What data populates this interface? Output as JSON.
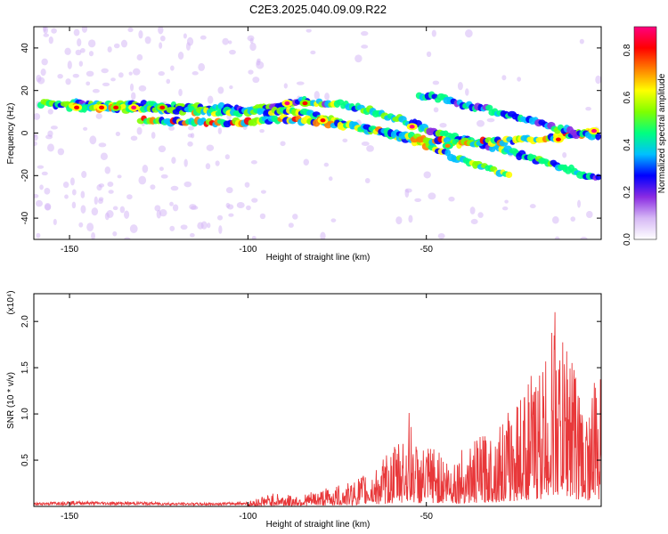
{
  "title": "C2E3.2025.040.09.09.R22",
  "colors": {
    "snr_line": "#e8383a",
    "axis": "#000000",
    "background": "#ffffff"
  },
  "chart_data": [
    {
      "type": "heatmap",
      "xlabel": "Height of straight line (km)",
      "ylabel": "Frequency (Hz)",
      "xlim": [
        -160,
        -1
      ],
      "ylim": [
        -50,
        50
      ],
      "x_ticks": [
        -150,
        -100,
        -50
      ],
      "y_ticks": [
        -40,
        -20,
        0,
        20,
        40
      ],
      "colorbar": {
        "label": "Normalized spectral amplitude",
        "range": [
          0.0,
          0.9
        ],
        "ticks": [
          "0.0",
          "0.2",
          "0.4",
          "0.6",
          "0.8"
        ],
        "colors": [
          "#ffffff",
          "#d6b8f5",
          "#8a2be2",
          "#0000ff",
          "#00c0ff",
          "#00ff80",
          "#80ff00",
          "#ffff00",
          "#ff8000",
          "#ff0000",
          "#ff0080"
        ]
      },
      "ridges": [
        {
          "x": [
            -158,
            -130,
            -110,
            -98,
            -85,
            -75,
            -65,
            -55,
            -48,
            -42,
            -35,
            -28,
            -20,
            -12,
            -5,
            -1
          ],
          "y": [
            14,
            13,
            12,
            11,
            15,
            14,
            10,
            5,
            1,
            -2,
            -5,
            -8,
            -12,
            -16,
            -20,
            -22
          ],
          "level": 0.6
        },
        {
          "x": [
            -150,
            -130,
            -110,
            -95,
            -85,
            -75,
            -68,
            -60,
            -55,
            -50,
            -44,
            -38,
            -32,
            -26
          ],
          "y": [
            12,
            11,
            10,
            10,
            10,
            6,
            2,
            -1,
            -3,
            -6,
            -10,
            -14,
            -17,
            -20
          ],
          "level": 0.7
        },
        {
          "x": [
            -130,
            -110,
            -100,
            -90,
            -80,
            -70,
            -60,
            -50,
            -40,
            -30,
            -20,
            -10,
            -3
          ],
          "y": [
            6,
            5,
            5,
            7,
            5,
            3,
            0,
            -3,
            -5,
            -4,
            -3,
            -1,
            1
          ],
          "level": 0.8
        },
        {
          "x": [
            -52,
            -45,
            -38,
            -30,
            -22,
            -15,
            -8,
            -1
          ],
          "y": [
            18,
            16,
            13,
            10,
            6,
            3,
            0,
            -2
          ],
          "level": 0.5
        }
      ],
      "hotspots": [
        {
          "x": -148,
          "y": 12,
          "v": 0.85
        },
        {
          "x": -141,
          "y": 12,
          "v": 0.85
        },
        {
          "x": -137,
          "y": 12,
          "v": 0.8
        },
        {
          "x": -132,
          "y": 12,
          "v": 0.9
        },
        {
          "x": -124,
          "y": 12,
          "v": 0.8
        },
        {
          "x": -89,
          "y": 14,
          "v": 0.9
        },
        {
          "x": -84,
          "y": 14,
          "v": 0.8
        },
        {
          "x": -79,
          "y": 6,
          "v": 0.85
        },
        {
          "x": -54,
          "y": 3,
          "v": 0.9
        },
        {
          "x": -44,
          "y": -6,
          "v": 0.7
        },
        {
          "x": -13,
          "y": -3,
          "v": 0.85
        },
        {
          "x": -3,
          "y": 1,
          "v": 0.9
        }
      ]
    },
    {
      "type": "line",
      "xlabel": "Height of straight line (km)",
      "ylabel": "SNR (10 * v/v)",
      "multiplier": "(x10⁴)",
      "xlim": [
        -160,
        -1
      ],
      "ylim": [
        0,
        2.3
      ],
      "x_ticks": [
        -150,
        -100,
        -50
      ],
      "y_ticks": [
        "0.5",
        "1.0",
        "1.5",
        "2.0"
      ],
      "series": [
        {
          "envelope_x": [
            -160,
            -150,
            -140,
            -130,
            -120,
            -110,
            -100,
            -96,
            -92,
            -88,
            -84,
            -80,
            -76,
            -72,
            -68,
            -64,
            -60,
            -56,
            -55,
            -52,
            -48,
            -44,
            -40,
            -36,
            -32,
            -28,
            -24,
            -20,
            -17,
            -15,
            -14,
            -12,
            -10,
            -8,
            -6,
            -4,
            -2,
            -1
          ],
          "envelope_y": [
            0.04,
            0.06,
            0.05,
            0.05,
            0.04,
            0.04,
            0.05,
            0.12,
            0.15,
            0.12,
            0.14,
            0.18,
            0.22,
            0.25,
            0.35,
            0.42,
            0.62,
            0.85,
            1.05,
            0.6,
            0.68,
            0.55,
            0.62,
            0.72,
            0.85,
            0.95,
            1.25,
            1.45,
            1.6,
            1.9,
            2.3,
            1.75,
            2.05,
            1.55,
            1.05,
            1.25,
            1.45,
            1.4
          ]
        }
      ]
    }
  ]
}
